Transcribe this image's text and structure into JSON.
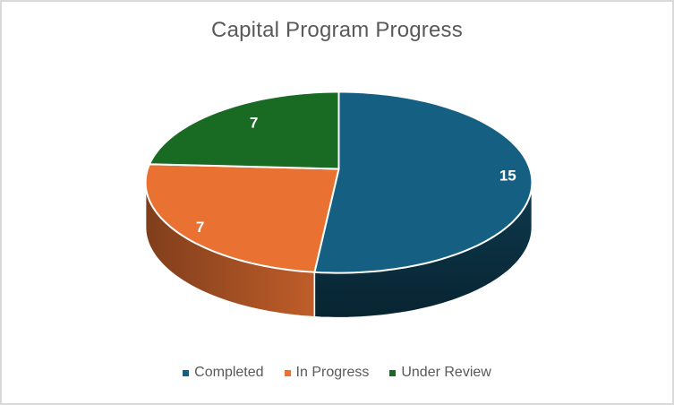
{
  "frame": {
    "background": "#FFFFFF",
    "border_color": "#D9D9D9"
  },
  "title": {
    "text": "Capital Program Progress",
    "color": "#595959"
  },
  "chart_data": {
    "type": "pie",
    "projection": "3d",
    "title": "Capital Program Progress",
    "categories": [
      "Completed",
      "In Progress",
      "Under Review"
    ],
    "values": [
      15,
      7,
      7
    ],
    "colors": [
      "#156082",
      "#E97132",
      "#196B24"
    ],
    "data_labels": [
      "15",
      "7",
      "7"
    ],
    "data_label_color": "#FFFFFF",
    "slice_border_color": "#FFFFFF",
    "start_angle_deg": 0,
    "direction": "clockwise",
    "legend_position": "bottom"
  },
  "legend": {
    "items": [
      {
        "label": "Completed",
        "color": "#156082"
      },
      {
        "label": "In Progress",
        "color": "#E97132"
      },
      {
        "label": "Under Review",
        "color": "#196B24"
      }
    ],
    "text_color": "#595959"
  }
}
